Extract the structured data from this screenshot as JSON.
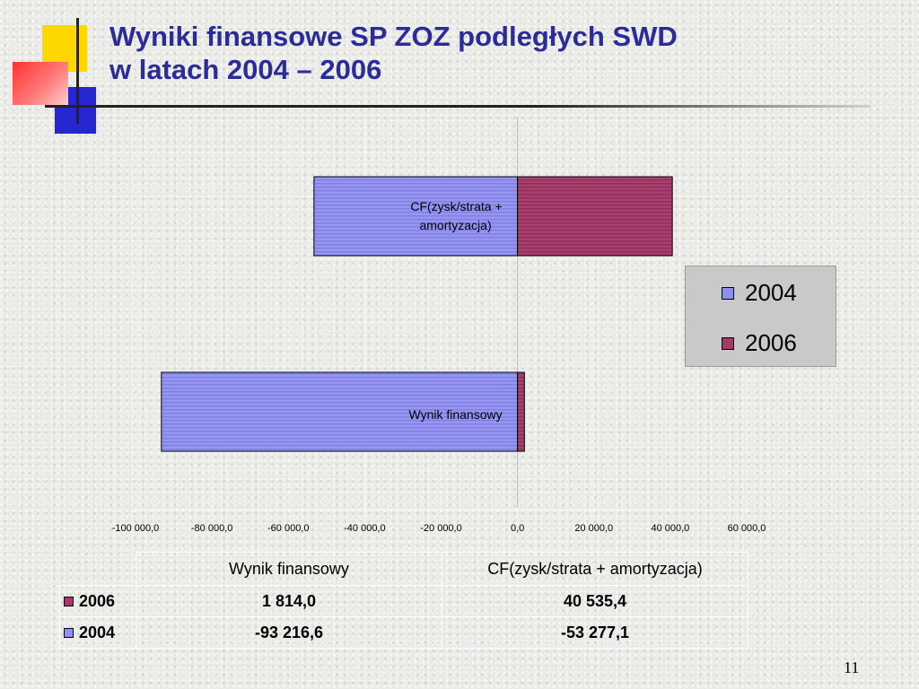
{
  "slide": {
    "title_line1": "Wyniki finansowe SP ZOZ podległych SWD",
    "title_line2": "w latach  2004 – 2006",
    "page_number": "11"
  },
  "colors": {
    "series_2004": "#8f8ff0",
    "series_2006": "#a33a6c",
    "title": "#2b2b9a"
  },
  "chart_data": {
    "type": "bar",
    "orientation": "horizontal",
    "categories": [
      "Wynik finansowy",
      "CF(zysk/strata + amortyzacja)"
    ],
    "category_labels": [
      "Wynik finansowy",
      "CF(zysk/strata +",
      "amortyzacja)"
    ],
    "series": [
      {
        "name": "2004",
        "values": [
          -93216.6,
          -53277.1
        ]
      },
      {
        "name": "2006",
        "values": [
          1814.0,
          40535.4
        ]
      }
    ],
    "xlim": [
      -100000,
      60000
    ],
    "x_ticks": [
      -100000,
      -80000,
      -60000,
      -40000,
      -20000,
      0,
      20000,
      40000,
      60000
    ],
    "x_tick_labels": [
      "-100 000,0",
      "-80 000,0",
      "-60 000,0",
      "-40 000,0",
      "-20 000,0",
      "0,0",
      "20 000,0",
      "40 000,0",
      "60 000,0"
    ],
    "legend": {
      "position": "right",
      "entries": [
        "2004",
        "2006"
      ]
    },
    "grid": true
  },
  "table": {
    "columns": [
      "Wynik finansowy",
      "CF(zysk/strata + amortyzacja)"
    ],
    "rows": [
      {
        "label": "2006",
        "values": [
          "1 814,0",
          "40 535,4"
        ]
      },
      {
        "label": "2004",
        "values": [
          "-93 216,6",
          "-53 277,1"
        ]
      }
    ]
  }
}
